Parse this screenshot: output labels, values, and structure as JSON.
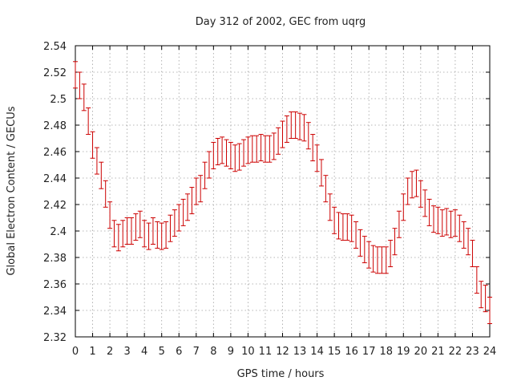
{
  "chart_data": {
    "type": "scatter",
    "title": "Day 312 of 2002, GEC from uqrg",
    "xlabel": "GPS time / hours",
    "ylabel": "Global Electron Content / GECUs",
    "xlim": [
      0,
      24
    ],
    "ylim": [
      2.32,
      2.54
    ],
    "xticks": [
      0,
      1,
      2,
      3,
      4,
      5,
      6,
      7,
      8,
      9,
      10,
      11,
      12,
      13,
      14,
      15,
      16,
      17,
      18,
      19,
      20,
      21,
      22,
      23,
      24
    ],
    "yticks": [
      2.32,
      2.34,
      2.36,
      2.38,
      2.4,
      2.42,
      2.44,
      2.46,
      2.48,
      2.5,
      2.52,
      2.54
    ],
    "ytick_labels": [
      "2.32",
      "2.34",
      "2.36",
      "2.38",
      "2.4",
      "2.42",
      "2.44",
      "2.46",
      "2.48",
      "2.5",
      "2.52",
      "2.54"
    ],
    "grid": true,
    "legend": "none",
    "series_color": "#cc0000",
    "error": 0.01,
    "points": [
      {
        "x": 0.0,
        "y": 2.518
      },
      {
        "x": 0.25,
        "y": 2.51
      },
      {
        "x": 0.5,
        "y": 2.501
      },
      {
        "x": 0.75,
        "y": 2.483
      },
      {
        "x": 1.0,
        "y": 2.465
      },
      {
        "x": 1.25,
        "y": 2.453
      },
      {
        "x": 1.5,
        "y": 2.442
      },
      {
        "x": 1.75,
        "y": 2.428
      },
      {
        "x": 2.0,
        "y": 2.412
      },
      {
        "x": 2.25,
        "y": 2.398
      },
      {
        "x": 2.5,
        "y": 2.395
      },
      {
        "x": 2.75,
        "y": 2.398
      },
      {
        "x": 3.0,
        "y": 2.4
      },
      {
        "x": 3.25,
        "y": 2.4
      },
      {
        "x": 3.5,
        "y": 2.403
      },
      {
        "x": 3.75,
        "y": 2.405
      },
      {
        "x": 4.0,
        "y": 2.398
      },
      {
        "x": 4.25,
        "y": 2.396
      },
      {
        "x": 4.5,
        "y": 2.4
      },
      {
        "x": 4.75,
        "y": 2.397
      },
      {
        "x": 5.0,
        "y": 2.396
      },
      {
        "x": 5.25,
        "y": 2.397
      },
      {
        "x": 5.5,
        "y": 2.402
      },
      {
        "x": 5.75,
        "y": 2.406
      },
      {
        "x": 6.0,
        "y": 2.41
      },
      {
        "x": 6.25,
        "y": 2.414
      },
      {
        "x": 6.5,
        "y": 2.418
      },
      {
        "x": 6.75,
        "y": 2.423
      },
      {
        "x": 7.0,
        "y": 2.43
      },
      {
        "x": 7.25,
        "y": 2.432
      },
      {
        "x": 7.5,
        "y": 2.442
      },
      {
        "x": 7.75,
        "y": 2.45
      },
      {
        "x": 8.0,
        "y": 2.457
      },
      {
        "x": 8.25,
        "y": 2.46
      },
      {
        "x": 8.5,
        "y": 2.461
      },
      {
        "x": 8.75,
        "y": 2.459
      },
      {
        "x": 9.0,
        "y": 2.457
      },
      {
        "x": 9.25,
        "y": 2.455
      },
      {
        "x": 9.5,
        "y": 2.456
      },
      {
        "x": 9.75,
        "y": 2.459
      },
      {
        "x": 10.0,
        "y": 2.461
      },
      {
        "x": 10.25,
        "y": 2.462
      },
      {
        "x": 10.5,
        "y": 2.462
      },
      {
        "x": 10.75,
        "y": 2.463
      },
      {
        "x": 11.0,
        "y": 2.462
      },
      {
        "x": 11.25,
        "y": 2.462
      },
      {
        "x": 11.5,
        "y": 2.464
      },
      {
        "x": 11.75,
        "y": 2.468
      },
      {
        "x": 12.0,
        "y": 2.473
      },
      {
        "x": 12.25,
        "y": 2.477
      },
      {
        "x": 12.5,
        "y": 2.48
      },
      {
        "x": 12.75,
        "y": 2.48
      },
      {
        "x": 13.0,
        "y": 2.479
      },
      {
        "x": 13.25,
        "y": 2.478
      },
      {
        "x": 13.5,
        "y": 2.472
      },
      {
        "x": 13.75,
        "y": 2.463
      },
      {
        "x": 14.0,
        "y": 2.455
      },
      {
        "x": 14.25,
        "y": 2.444
      },
      {
        "x": 14.5,
        "y": 2.432
      },
      {
        "x": 14.75,
        "y": 2.418
      },
      {
        "x": 15.0,
        "y": 2.408
      },
      {
        "x": 15.25,
        "y": 2.404
      },
      {
        "x": 15.5,
        "y": 2.403
      },
      {
        "x": 15.75,
        "y": 2.403
      },
      {
        "x": 16.0,
        "y": 2.402
      },
      {
        "x": 16.25,
        "y": 2.397
      },
      {
        "x": 16.5,
        "y": 2.391
      },
      {
        "x": 16.75,
        "y": 2.386
      },
      {
        "x": 17.0,
        "y": 2.382
      },
      {
        "x": 17.25,
        "y": 2.379
      },
      {
        "x": 17.5,
        "y": 2.378
      },
      {
        "x": 17.75,
        "y": 2.378
      },
      {
        "x": 18.0,
        "y": 2.378
      },
      {
        "x": 18.25,
        "y": 2.383
      },
      {
        "x": 18.5,
        "y": 2.392
      },
      {
        "x": 18.75,
        "y": 2.405
      },
      {
        "x": 19.0,
        "y": 2.418
      },
      {
        "x": 19.25,
        "y": 2.43
      },
      {
        "x": 19.5,
        "y": 2.435
      },
      {
        "x": 19.75,
        "y": 2.436
      },
      {
        "x": 20.0,
        "y": 2.428
      },
      {
        "x": 20.25,
        "y": 2.421
      },
      {
        "x": 20.5,
        "y": 2.414
      },
      {
        "x": 20.75,
        "y": 2.409
      },
      {
        "x": 21.0,
        "y": 2.408
      },
      {
        "x": 21.25,
        "y": 2.406
      },
      {
        "x": 21.5,
        "y": 2.407
      },
      {
        "x": 21.75,
        "y": 2.405
      },
      {
        "x": 22.0,
        "y": 2.406
      },
      {
        "x": 22.25,
        "y": 2.402
      },
      {
        "x": 22.5,
        "y": 2.397
      },
      {
        "x": 22.75,
        "y": 2.392
      },
      {
        "x": 23.0,
        "y": 2.383
      },
      {
        "x": 23.25,
        "y": 2.363
      },
      {
        "x": 23.5,
        "y": 2.352
      },
      {
        "x": 23.75,
        "y": 2.349
      },
      {
        "x": 24.0,
        "y": 2.34
      }
    ]
  }
}
